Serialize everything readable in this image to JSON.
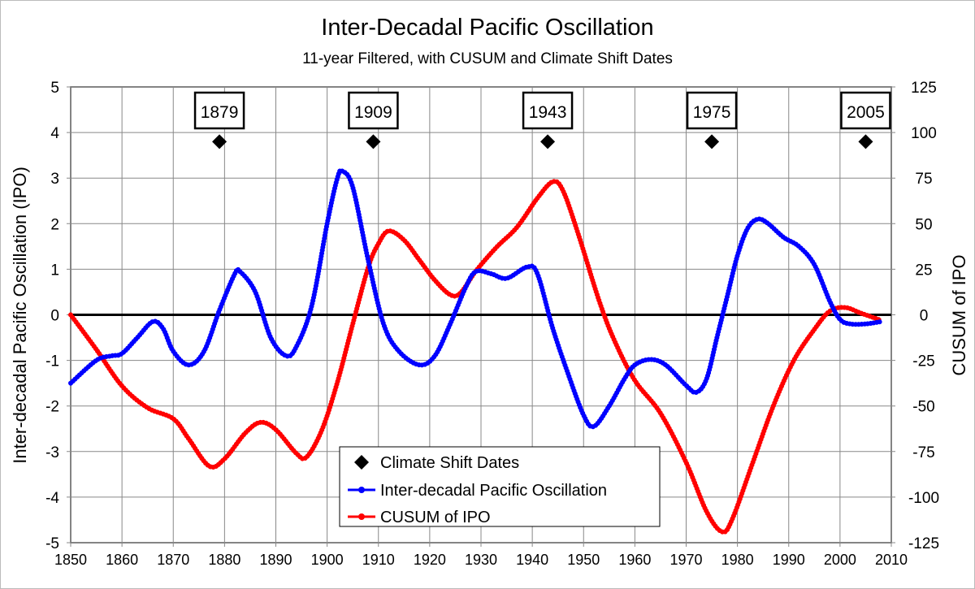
{
  "chart_data": {
    "type": "line",
    "title": "Inter-Decadal Pacific Oscillation",
    "subtitle": "11-year Filtered, with CUSUM and Climate Shift Dates",
    "xlabel": "",
    "ylabel": "Inter-decadal Pacific Oscillation (IPO)",
    "y2label": "CUSUM of IPO",
    "xlim": [
      1850,
      2010
    ],
    "ylim": [
      -5,
      5
    ],
    "y2lim": [
      -125,
      125
    ],
    "x_ticks": [
      "1850",
      "1860",
      "1870",
      "1880",
      "1890",
      "1900",
      "1910",
      "1920",
      "1930",
      "1940",
      "1950",
      "1960",
      "1970",
      "1980",
      "1990",
      "2000",
      "2010"
    ],
    "y_ticks": [
      "5",
      "4",
      "3",
      "2",
      "1",
      "0",
      "-1",
      "-2",
      "-3",
      "-4",
      "-5"
    ],
    "y2_ticks": [
      "125",
      "100",
      "75",
      "50",
      "25",
      "0",
      "-25",
      "-50",
      "-75",
      "-100",
      "-125"
    ],
    "grid": true,
    "legend_position": "bottom-center",
    "legend": [
      "Climate Shift Dates",
      "Inter-decadal Pacific Oscillation",
      "CUSUM of IPO"
    ],
    "colors": {
      "ipo": "#0000ff",
      "cusum": "#ff0000",
      "shift": "#000000"
    },
    "shift_dates": {
      "name": "Climate Shift Dates",
      "years": [
        1879,
        1909,
        1943,
        1975,
        2005
      ],
      "labels": [
        "1879",
        "1909",
        "1943",
        "1975",
        "2005"
      ],
      "y": 3.8
    },
    "series": [
      {
        "name": "Inter-decadal Pacific Oscillation",
        "axis": "left",
        "x": [
          1850,
          1855,
          1858,
          1860,
          1863,
          1866,
          1868,
          1870,
          1873,
          1876,
          1879,
          1882,
          1883,
          1886,
          1889,
          1892,
          1894,
          1897,
          1900,
          1902,
          1903,
          1905,
          1908,
          1911,
          1914,
          1918,
          1921,
          1924,
          1927,
          1929,
          1932,
          1935,
          1939,
          1941,
          1944,
          1947,
          1950,
          1952,
          1955,
          1958,
          1960,
          1963,
          1966,
          1970,
          1972,
          1974,
          1976,
          1978,
          1980,
          1982,
          1984,
          1986,
          1989,
          1992,
          1995,
          1998,
          2000,
          2002,
          2005,
          2008
        ],
        "y": [
          -1.5,
          -1.0,
          -0.9,
          -0.85,
          -0.5,
          -0.15,
          -0.3,
          -0.8,
          -1.1,
          -0.8,
          0.1,
          0.9,
          0.95,
          0.5,
          -0.5,
          -0.9,
          -0.7,
          0.2,
          2.0,
          3.0,
          3.15,
          2.8,
          1.2,
          -0.2,
          -0.8,
          -1.1,
          -0.9,
          -0.2,
          0.6,
          0.95,
          0.9,
          0.8,
          1.05,
          0.9,
          -0.3,
          -1.3,
          -2.2,
          -2.45,
          -2.0,
          -1.4,
          -1.1,
          -0.98,
          -1.1,
          -1.55,
          -1.7,
          -1.4,
          -0.5,
          0.4,
          1.3,
          1.9,
          2.1,
          2.0,
          1.7,
          1.5,
          1.1,
          0.3,
          -0.1,
          -0.2,
          -0.2,
          -0.15
        ]
      },
      {
        "name": "CUSUM of IPO",
        "axis": "right",
        "x": [
          1850,
          1855,
          1860,
          1865,
          1870,
          1873,
          1877,
          1880,
          1884,
          1887,
          1890,
          1894,
          1896,
          1899,
          1902,
          1905,
          1908,
          1910,
          1912,
          1915,
          1918,
          1921,
          1924,
          1926,
          1929,
          1933,
          1937,
          1941,
          1944,
          1946,
          1949,
          1953,
          1956,
          1960,
          1965,
          1970,
          1974,
          1977,
          1979,
          1983,
          1987,
          1991,
          1995,
          1998,
          2001,
          2004,
          2008
        ],
        "y": [
          0,
          -19,
          -39,
          -51,
          -57,
          -68,
          -83,
          -79,
          -65,
          -59,
          -63,
          -76,
          -78,
          -63,
          -37,
          -5,
          26,
          39,
          46,
          41,
          30,
          19,
          11,
          12,
          24,
          37,
          48,
          64,
          73,
          68,
          44,
          8,
          -14,
          -36,
          -54,
          -81,
          -108,
          -119,
          -112,
          -81,
          -50,
          -25,
          -8,
          2,
          4,
          1,
          -3
        ]
      }
    ]
  }
}
